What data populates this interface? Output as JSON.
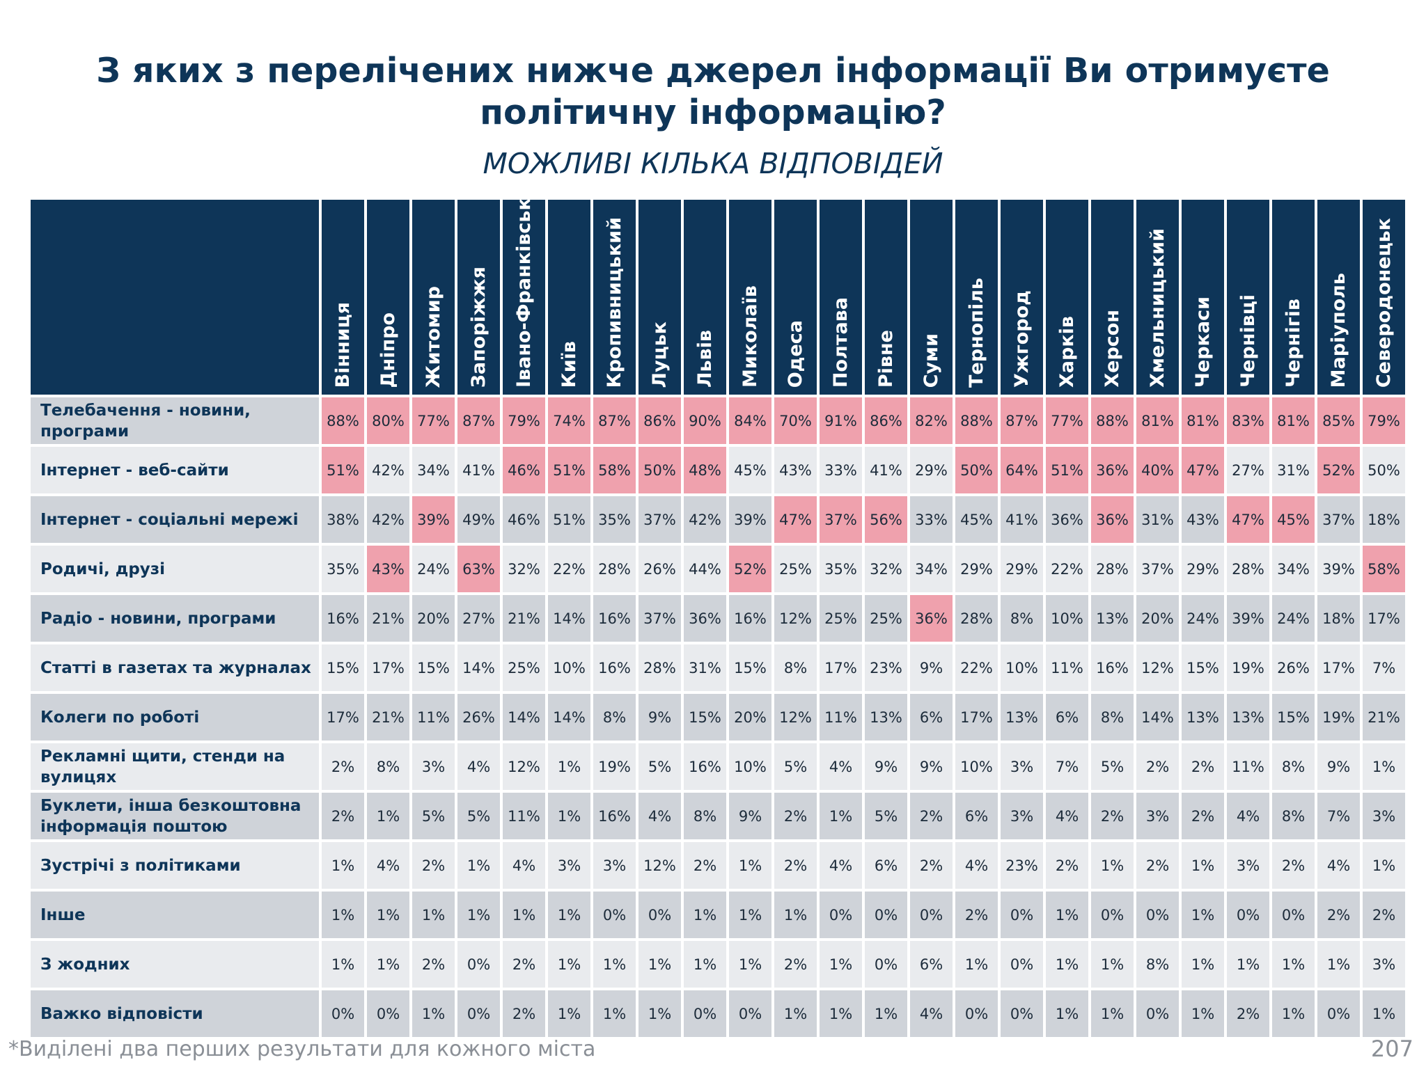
{
  "title_line1": "З яких з перелічених нижче джерел інформації Ви отримуєте",
  "title_line2": "політичну інформацію?",
  "subtitle": "МОЖЛИВІ КІЛЬКА ВІДПОВІДЕЙ",
  "footnote": "*Виділені два перших результати для кожного міста",
  "page_number": "207",
  "colors": {
    "header": "#0e3558",
    "highlight": "#efa1ad",
    "row_dark": "#cfd3d9",
    "row_light": "#e9ebee"
  },
  "cities": [
    "Вінниця",
    "Дніпро",
    "Житомир",
    "Запоріжжя",
    "Івано-Франківськ",
    "Київ",
    "Кропивницький",
    "Луцьк",
    "Львів",
    "Миколаїв",
    "Одеса",
    "Полтава",
    "Рівне",
    "Суми",
    "Тернопіль",
    "Ужгород",
    "Харків",
    "Херсон",
    "Хмельницький",
    "Черкаси",
    "Чернівці",
    "Чернігів",
    "Маріуполь",
    "Северодонецьк"
  ],
  "rows": [
    {
      "label": "Телебачення - новини, програми",
      "values": [
        "88%",
        "80%",
        "77%",
        "87%",
        "79%",
        "74%",
        "87%",
        "86%",
        "90%",
        "84%",
        "70%",
        "91%",
        "86%",
        "82%",
        "88%",
        "87%",
        "77%",
        "88%",
        "81%",
        "81%",
        "83%",
        "81%",
        "85%",
        "79%"
      ],
      "highlight": [
        true,
        true,
        true,
        true,
        true,
        true,
        true,
        true,
        true,
        true,
        true,
        true,
        true,
        true,
        true,
        true,
        true,
        true,
        true,
        true,
        true,
        true,
        true,
        true
      ]
    },
    {
      "label": "Інтернет - веб-сайти",
      "values": [
        "51%",
        "42%",
        "34%",
        "41%",
        "46%",
        "51%",
        "58%",
        "50%",
        "48%",
        "45%",
        "43%",
        "33%",
        "41%",
        "29%",
        "50%",
        "64%",
        "51%",
        "36%",
        "40%",
        "47%",
        "27%",
        "31%",
        "52%",
        "50%"
      ],
      "highlight": [
        true,
        false,
        false,
        false,
        true,
        true,
        true,
        true,
        true,
        false,
        false,
        false,
        false,
        false,
        true,
        true,
        true,
        true,
        true,
        true,
        false,
        false,
        true,
        false
      ]
    },
    {
      "label": "Інтернет - соціальні мережі",
      "values": [
        "38%",
        "42%",
        "39%",
        "49%",
        "46%",
        "51%",
        "35%",
        "37%",
        "42%",
        "39%",
        "47%",
        "37%",
        "56%",
        "33%",
        "45%",
        "41%",
        "36%",
        "36%",
        "31%",
        "43%",
        "47%",
        "45%",
        "37%",
        "18%"
      ],
      "highlight": [
        false,
        false,
        true,
        false,
        false,
        false,
        false,
        false,
        false,
        false,
        true,
        true,
        true,
        false,
        false,
        false,
        false,
        true,
        false,
        false,
        true,
        true,
        false,
        false
      ]
    },
    {
      "label": "Родичі, друзі",
      "values": [
        "35%",
        "43%",
        "24%",
        "63%",
        "32%",
        "22%",
        "28%",
        "26%",
        "44%",
        "52%",
        "25%",
        "35%",
        "32%",
        "34%",
        "29%",
        "29%",
        "22%",
        "28%",
        "37%",
        "29%",
        "28%",
        "34%",
        "39%",
        "58%"
      ],
      "highlight": [
        false,
        true,
        false,
        true,
        false,
        false,
        false,
        false,
        false,
        true,
        false,
        false,
        false,
        false,
        false,
        false,
        false,
        false,
        false,
        false,
        false,
        false,
        false,
        true
      ]
    },
    {
      "label": "Радіо - новини, програми",
      "values": [
        "16%",
        "21%",
        "20%",
        "27%",
        "21%",
        "14%",
        "16%",
        "37%",
        "36%",
        "16%",
        "12%",
        "25%",
        "25%",
        "36%",
        "28%",
        "8%",
        "10%",
        "13%",
        "20%",
        "24%",
        "39%",
        "24%",
        "18%",
        "17%"
      ],
      "highlight": [
        false,
        false,
        false,
        false,
        false,
        false,
        false,
        false,
        false,
        false,
        false,
        false,
        false,
        true,
        false,
        false,
        false,
        false,
        false,
        false,
        false,
        false,
        false,
        false
      ]
    },
    {
      "label": "Статті в газетах та журналах",
      "values": [
        "15%",
        "17%",
        "15%",
        "14%",
        "25%",
        "10%",
        "16%",
        "28%",
        "31%",
        "15%",
        "8%",
        "17%",
        "23%",
        "9%",
        "22%",
        "10%",
        "11%",
        "16%",
        "12%",
        "15%",
        "19%",
        "26%",
        "17%",
        "7%"
      ],
      "highlight": [
        false,
        false,
        false,
        false,
        false,
        false,
        false,
        false,
        false,
        false,
        false,
        false,
        false,
        false,
        false,
        false,
        false,
        false,
        false,
        false,
        false,
        false,
        false,
        false
      ]
    },
    {
      "label": "Колеги по роботі",
      "values": [
        "17%",
        "21%",
        "11%",
        "26%",
        "14%",
        "14%",
        "8%",
        "9%",
        "15%",
        "20%",
        "12%",
        "11%",
        "13%",
        "6%",
        "17%",
        "13%",
        "6%",
        "8%",
        "14%",
        "13%",
        "13%",
        "15%",
        "19%",
        "21%"
      ],
      "highlight": [
        false,
        false,
        false,
        false,
        false,
        false,
        false,
        false,
        false,
        false,
        false,
        false,
        false,
        false,
        false,
        false,
        false,
        false,
        false,
        false,
        false,
        false,
        false,
        false
      ]
    },
    {
      "label": "Рекламні щити, стенди на вулицях",
      "values": [
        "2%",
        "8%",
        "3%",
        "4%",
        "12%",
        "1%",
        "19%",
        "5%",
        "16%",
        "10%",
        "5%",
        "4%",
        "9%",
        "9%",
        "10%",
        "3%",
        "7%",
        "5%",
        "2%",
        "2%",
        "11%",
        "8%",
        "9%",
        "1%"
      ],
      "highlight": [
        false,
        false,
        false,
        false,
        false,
        false,
        false,
        false,
        false,
        false,
        false,
        false,
        false,
        false,
        false,
        false,
        false,
        false,
        false,
        false,
        false,
        false,
        false,
        false
      ]
    },
    {
      "label": "Буклети, інша безкоштовна інформація поштою",
      "values": [
        "2%",
        "1%",
        "5%",
        "5%",
        "11%",
        "1%",
        "16%",
        "4%",
        "8%",
        "9%",
        "2%",
        "1%",
        "5%",
        "2%",
        "6%",
        "3%",
        "4%",
        "2%",
        "3%",
        "2%",
        "4%",
        "8%",
        "7%",
        "3%"
      ],
      "highlight": [
        false,
        false,
        false,
        false,
        false,
        false,
        false,
        false,
        false,
        false,
        false,
        false,
        false,
        false,
        false,
        false,
        false,
        false,
        false,
        false,
        false,
        false,
        false,
        false
      ]
    },
    {
      "label": "Зустрічі з політиками",
      "values": [
        "1%",
        "4%",
        "2%",
        "1%",
        "4%",
        "3%",
        "3%",
        "12%",
        "2%",
        "1%",
        "2%",
        "4%",
        "6%",
        "2%",
        "4%",
        "23%",
        "2%",
        "1%",
        "2%",
        "1%",
        "3%",
        "2%",
        "4%",
        "1%"
      ],
      "highlight": [
        false,
        false,
        false,
        false,
        false,
        false,
        false,
        false,
        false,
        false,
        false,
        false,
        false,
        false,
        false,
        false,
        false,
        false,
        false,
        false,
        false,
        false,
        false,
        false
      ]
    },
    {
      "label": "Інше",
      "values": [
        "1%",
        "1%",
        "1%",
        "1%",
        "1%",
        "1%",
        "0%",
        "0%",
        "1%",
        "1%",
        "1%",
        "0%",
        "0%",
        "0%",
        "2%",
        "0%",
        "1%",
        "0%",
        "0%",
        "1%",
        "0%",
        "0%",
        "2%",
        "2%"
      ],
      "highlight": [
        false,
        false,
        false,
        false,
        false,
        false,
        false,
        false,
        false,
        false,
        false,
        false,
        false,
        false,
        false,
        false,
        false,
        false,
        false,
        false,
        false,
        false,
        false,
        false
      ]
    },
    {
      "label": "З жодних",
      "values": [
        "1%",
        "1%",
        "2%",
        "0%",
        "2%",
        "1%",
        "1%",
        "1%",
        "1%",
        "1%",
        "2%",
        "1%",
        "0%",
        "6%",
        "1%",
        "0%",
        "1%",
        "1%",
        "8%",
        "1%",
        "1%",
        "1%",
        "1%",
        "3%"
      ],
      "highlight": [
        false,
        false,
        false,
        false,
        false,
        false,
        false,
        false,
        false,
        false,
        false,
        false,
        false,
        false,
        false,
        false,
        false,
        false,
        false,
        false,
        false,
        false,
        false,
        false
      ]
    },
    {
      "label": "Важко відповісти",
      "values": [
        "0%",
        "0%",
        "1%",
        "0%",
        "2%",
        "1%",
        "1%",
        "1%",
        "0%",
        "0%",
        "1%",
        "1%",
        "1%",
        "4%",
        "0%",
        "0%",
        "1%",
        "1%",
        "0%",
        "1%",
        "2%",
        "1%",
        "0%",
        "1%"
      ],
      "highlight": [
        false,
        false,
        false,
        false,
        false,
        false,
        false,
        false,
        false,
        false,
        false,
        false,
        false,
        false,
        false,
        false,
        false,
        false,
        false,
        false,
        false,
        false,
        false,
        false
      ]
    }
  ]
}
